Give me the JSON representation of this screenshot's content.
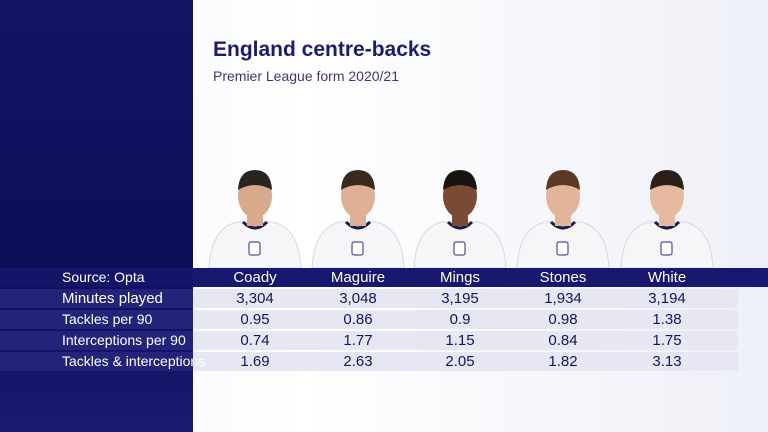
{
  "header": {
    "title": "England centre-backs",
    "subtitle": "Premier League form 2020/21"
  },
  "table": {
    "source": "Source: Opta",
    "columns": [
      "Coady",
      "Maguire",
      "Mings",
      "Stones",
      "White"
    ],
    "rows": [
      {
        "label": "Minutes played",
        "values": [
          "3,304",
          "3,048",
          "3,195",
          "1,934",
          "3,194"
        ]
      },
      {
        "label": "Tackles per 90",
        "values": [
          "0.95",
          "0.86",
          "0.9",
          "0.98",
          "1.38"
        ]
      },
      {
        "label": "Interceptions per 90",
        "values": [
          "0.74",
          "1.77",
          "1.15",
          "0.84",
          "1.75"
        ]
      },
      {
        "label": "Tackles & interceptions",
        "values": [
          "1.69",
          "2.63",
          "2.05",
          "1.82",
          "3.13"
        ]
      }
    ]
  }
}
